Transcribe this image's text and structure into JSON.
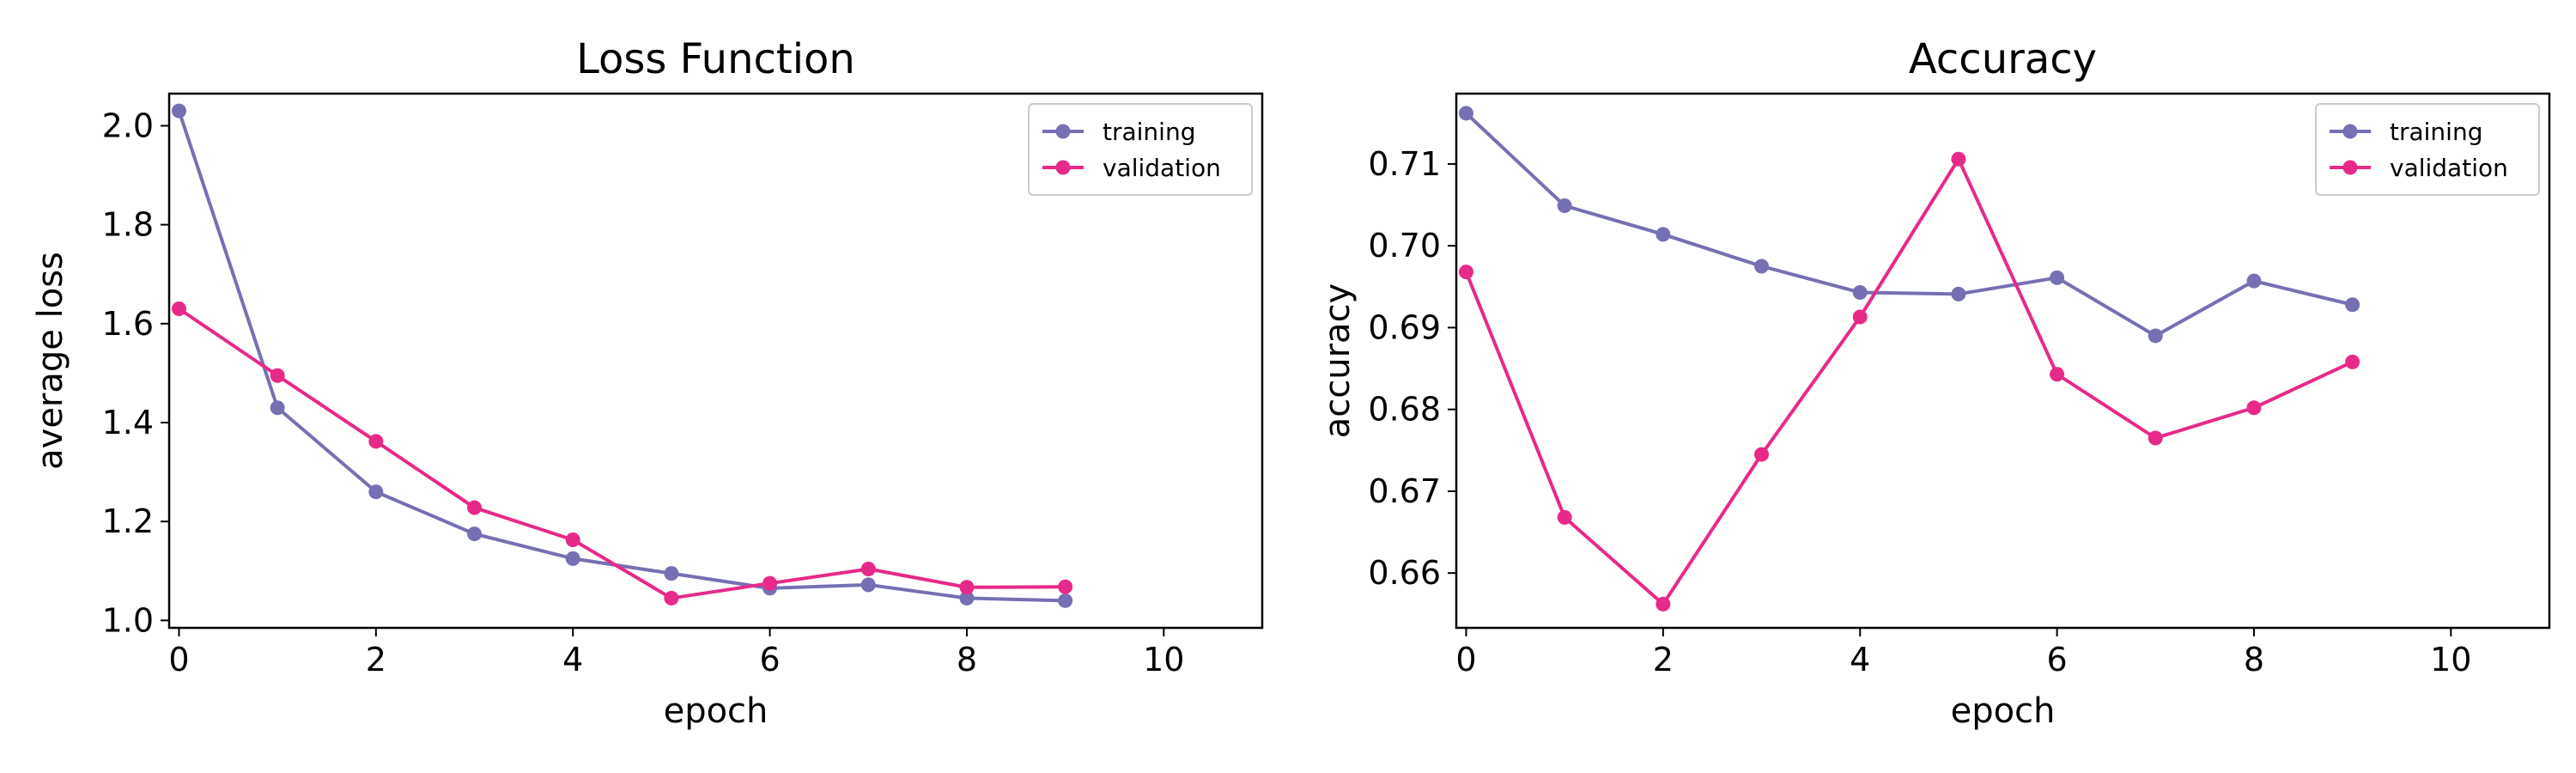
{
  "chart_data": [
    {
      "type": "line",
      "title": "Loss Function",
      "xlabel": "epoch",
      "ylabel": "average loss",
      "xlim": [
        -0.1,
        11.0
      ],
      "ylim": [
        0.985,
        2.065
      ],
      "xticks": [
        0,
        2,
        4,
        6,
        8,
        10
      ],
      "yticks": [
        1.0,
        1.2,
        1.4,
        1.6,
        1.8,
        2.0
      ],
      "ytick_labels": [
        "1.0",
        "1.2",
        "1.4",
        "1.6",
        "1.8",
        "2.0"
      ],
      "grid": false,
      "legend_position": "top-right",
      "x": [
        0,
        1,
        2,
        3,
        4,
        5,
        6,
        7,
        8,
        9
      ],
      "series": [
        {
          "name": "training",
          "color": "#7570b3",
          "values": [
            2.03,
            1.43,
            1.26,
            1.175,
            1.125,
            1.095,
            1.065,
            1.072,
            1.045,
            1.04
          ]
        },
        {
          "name": "validation",
          "color": "#e7298a",
          "values": [
            1.63,
            1.495,
            1.362,
            1.228,
            1.163,
            1.045,
            1.075,
            1.104,
            1.067,
            1.068
          ]
        }
      ]
    },
    {
      "type": "line",
      "title": "Accuracy",
      "xlabel": "epoch",
      "ylabel": "accuracy",
      "xlim": [
        -0.1,
        11.0
      ],
      "ylim": [
        0.6533,
        0.7186
      ],
      "xticks": [
        0,
        2,
        4,
        6,
        8,
        10
      ],
      "yticks": [
        0.66,
        0.67,
        0.68,
        0.69,
        0.7,
        0.71
      ],
      "ytick_labels": [
        "0.66",
        "0.67",
        "0.68",
        "0.69",
        "0.70",
        "0.71"
      ],
      "grid": false,
      "legend_position": "top-right",
      "x": [
        0,
        1,
        2,
        3,
        4,
        5,
        6,
        7,
        8,
        9
      ],
      "series": [
        {
          "name": "training",
          "color": "#7570b3",
          "values": [
            0.7162,
            0.7049,
            0.7014,
            0.6975,
            0.6943,
            0.6941,
            0.6961,
            0.689,
            0.6957,
            0.6928
          ]
        },
        {
          "name": "validation",
          "color": "#e7298a",
          "values": [
            0.6968,
            0.6668,
            0.6562,
            0.6745,
            0.6913,
            0.7106,
            0.6843,
            0.6765,
            0.6802,
            0.6858
          ]
        }
      ]
    }
  ]
}
